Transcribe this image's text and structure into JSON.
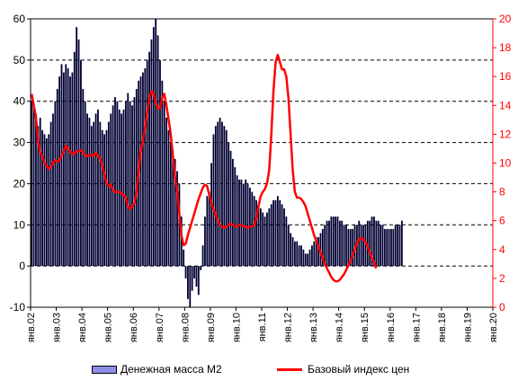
{
  "chart_data": {
    "type": "bar+line",
    "title": "",
    "x_tick_labels": [
      "янв.02",
      "янв.03",
      "янв.04",
      "янв.05",
      "янв.06",
      "янв.07",
      "янв.08",
      "янв.09",
      "янв.10",
      "янв.11",
      "янв.12",
      "янв.13",
      "янв.14",
      "янв.15",
      "янв.16",
      "янв.17",
      "янв.18",
      "янв.19",
      "янв.20"
    ],
    "left_axis": {
      "ylim": [
        -10,
        60
      ],
      "ticks": [
        -10,
        0,
        10,
        20,
        30,
        40,
        50,
        60
      ],
      "color": "#000000"
    },
    "right_axis": {
      "ylim": [
        0,
        20
      ],
      "ticks": [
        0,
        2,
        4,
        6,
        8,
        10,
        12,
        14,
        16,
        18,
        20
      ],
      "color": "#ff0000"
    },
    "grid": "horizontal dashed, left axis",
    "series": [
      {
        "name": "Денежная масса М2",
        "kind": "bar",
        "axis": "left",
        "color": "#000033",
        "start": "янв.02",
        "frequency": "monthly",
        "values": [
          40,
          39,
          37,
          34,
          36,
          33,
          32,
          31,
          32,
          35,
          37,
          40,
          43,
          46,
          49,
          47,
          49,
          48,
          46,
          47,
          52,
          58,
          55,
          50,
          43,
          40,
          37,
          36,
          34,
          35,
          37,
          38,
          35,
          33,
          32,
          33,
          35,
          37,
          39,
          41,
          40,
          38,
          37,
          38,
          40,
          42,
          40,
          39,
          41,
          43,
          45,
          46,
          47,
          48,
          50,
          52,
          55,
          58,
          60,
          56,
          50,
          45,
          40,
          36,
          33,
          30,
          28,
          26,
          23,
          20,
          12,
          4,
          -3,
          -8,
          -10,
          -6,
          -3,
          -5,
          -7,
          -1,
          5,
          12,
          17,
          18,
          25,
          32,
          34,
          35,
          36,
          35,
          34,
          33,
          30,
          28,
          26,
          24,
          22,
          21,
          21,
          20,
          21,
          20,
          19,
          18,
          17,
          16,
          15,
          14,
          13,
          12,
          13,
          14,
          15,
          16,
          16,
          17,
          16,
          15,
          14,
          12,
          10,
          8,
          7,
          6,
          6,
          5,
          5,
          4,
          3,
          3,
          4,
          5,
          6,
          7,
          7,
          8,
          9,
          10,
          11,
          11,
          12,
          12,
          12,
          12,
          11,
          11,
          10,
          10,
          9,
          9,
          9,
          10,
          10,
          11,
          10,
          10,
          10,
          11,
          11,
          12,
          12,
          11,
          11,
          10,
          10,
          9,
          9,
          9,
          9,
          9,
          10,
          10,
          10,
          11
        ]
      },
      {
        "name": "Базовый индекс цен",
        "kind": "line",
        "axis": "right",
        "color": "#ff0000",
        "start": "янв.02",
        "frequency": "monthly",
        "values": [
          14.8,
          14.0,
          13.2,
          11.5,
          10.7,
          10.5,
          10.0,
          9.8,
          9.6,
          9.7,
          10.0,
          10.2,
          10.1,
          10.2,
          10.5,
          10.8,
          11.2,
          11.0,
          10.8,
          10.6,
          10.7,
          10.8,
          10.8,
          10.9,
          10.7,
          10.5,
          10.5,
          10.5,
          10.6,
          10.5,
          10.7,
          10.5,
          10.3,
          9.8,
          9.2,
          8.6,
          8.4,
          8.5,
          8.1,
          8.0,
          8.0,
          8.0,
          7.9,
          7.8,
          7.6,
          7.0,
          6.8,
          7.0,
          7.2,
          8.0,
          9.5,
          10.8,
          11.5,
          12.5,
          13.5,
          14.5,
          15.0,
          14.8,
          14.2,
          13.8,
          13.8,
          14.5,
          14.8,
          14.0,
          13.0,
          12.0,
          10.5,
          9.0,
          8.0,
          6.5,
          5.0,
          4.3,
          4.4,
          5.0,
          5.5,
          6.0,
          6.5,
          7.0,
          7.5,
          7.9,
          8.3,
          8.5,
          8.4,
          7.8,
          7.2,
          6.8,
          6.4,
          6.0,
          5.7,
          5.6,
          5.5,
          5.6,
          5.7,
          5.8,
          5.7,
          5.6,
          5.6,
          5.7,
          5.7,
          5.6,
          5.6,
          5.5,
          5.6,
          5.6,
          5.7,
          6.2,
          7.0,
          7.7,
          8.0,
          8.2,
          8.6,
          9.5,
          12.0,
          15.0,
          17.0,
          17.5,
          17.0,
          16.5,
          16.5,
          16.0,
          14.5,
          12.0,
          9.5,
          8.0,
          7.6,
          7.6,
          7.5,
          7.3,
          7.0,
          6.5,
          6.0,
          5.5,
          5.0,
          4.6,
          4.2,
          3.8,
          3.4,
          3.0,
          2.7,
          2.4,
          2.1,
          1.9,
          1.8,
          1.8,
          1.9,
          2.1,
          2.3,
          2.6,
          2.9,
          3.2,
          3.6,
          4.0,
          4.5,
          4.7,
          4.8,
          4.7,
          4.5,
          4.2,
          3.8,
          3.4,
          3.1,
          2.7
        ]
      }
    ]
  }
}
